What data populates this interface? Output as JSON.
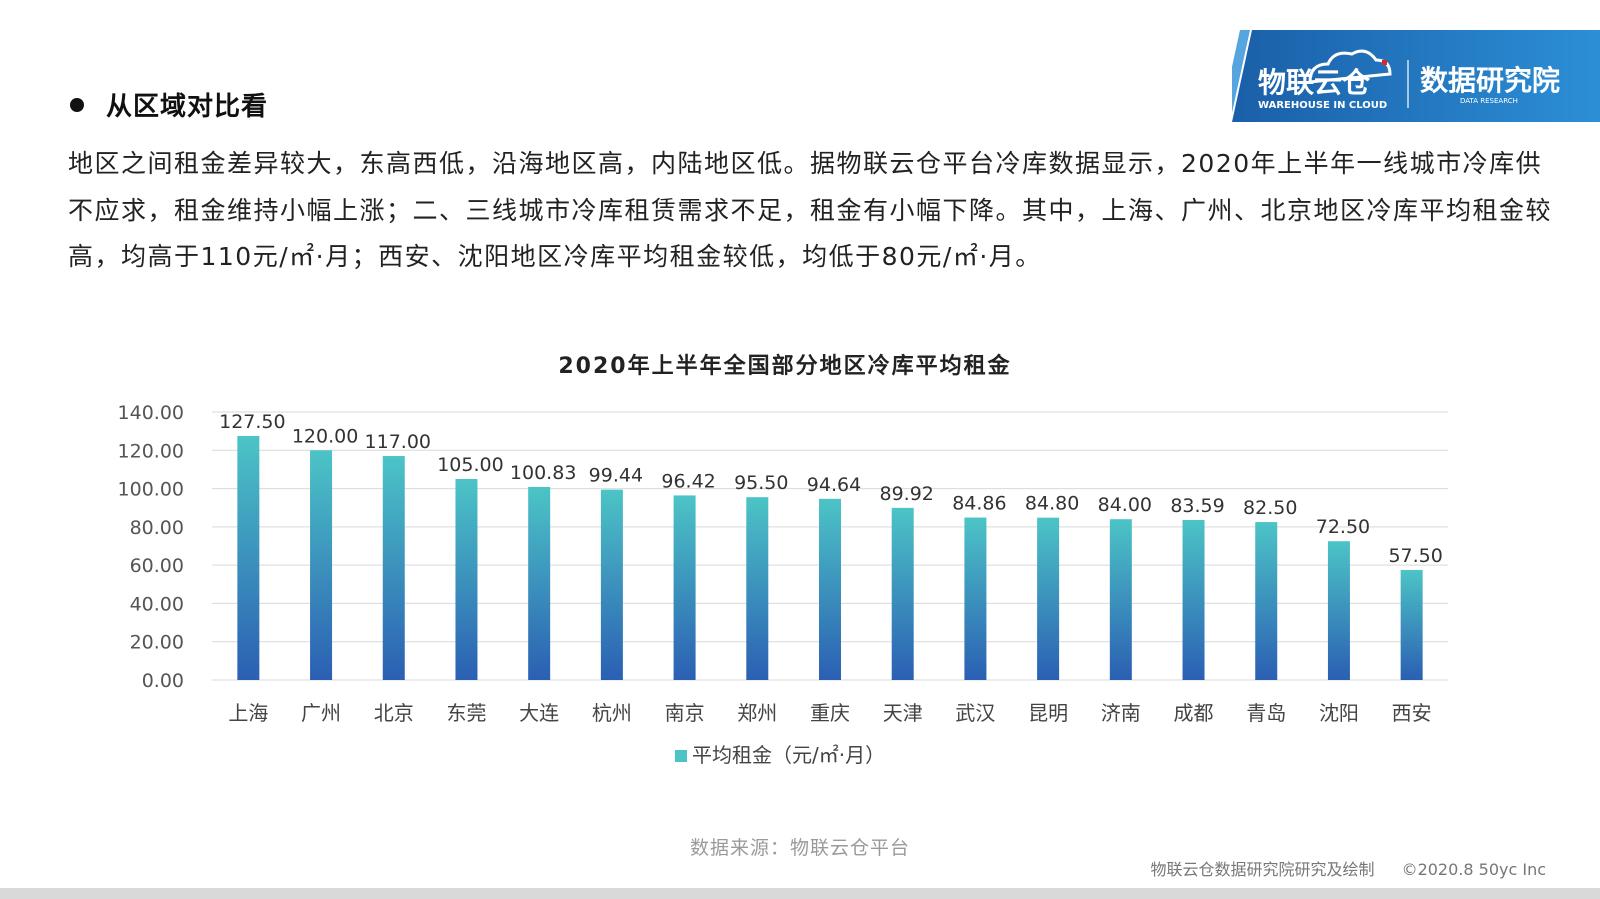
{
  "logo": {
    "brand_cn": "物联云仓",
    "brand_en": "WAREHOUSE IN CLOUD",
    "institute_cn": "数据研究院",
    "institute_en": "DATA RESEARCH",
    "color_dark": "#1a5fa8",
    "color_light": "#2c8fd6",
    "accent": "#e0242b"
  },
  "section": {
    "title": "从区域对比看"
  },
  "paragraph": "地区之间租金差异较大，东高西低，沿海地区高，内陆地区低。据物联云仓平台冷库数据显示，2020年上半年一线城市冷库供不应求，租金维持小幅上涨；二、三线城市冷库租赁需求不足，租金有小幅下降。其中，上海、广州、北京地区冷库平均租金较高，均高于110元/㎡·月；西安、沈阳地区冷库平均租金较低，均低于80元/㎡·月。",
  "chart_data": {
    "type": "bar",
    "title": "2020年上半年全国部分地区冷库平均租金",
    "categories": [
      "上海",
      "广州",
      "北京",
      "东莞",
      "大连",
      "杭州",
      "南京",
      "郑州",
      "重庆",
      "天津",
      "武汉",
      "昆明",
      "济南",
      "成都",
      "青岛",
      "沈阳",
      "西安"
    ],
    "series": [
      {
        "name": "平均租金（元/㎡·月）",
        "values": [
          127.5,
          120.0,
          117.0,
          105.0,
          100.83,
          99.44,
          96.42,
          95.5,
          94.64,
          89.92,
          84.86,
          84.8,
          84.0,
          83.59,
          82.5,
          72.5,
          57.5
        ],
        "labels": [
          "127.50",
          "120.00",
          "117.00",
          "105.00",
          "100.83",
          "99.44",
          "96.42",
          "95.50",
          "94.64",
          "89.92",
          "84.86",
          "84.80",
          "84.00",
          "83.59",
          "82.50",
          "72.50",
          "57.50"
        ]
      }
    ],
    "yticks": [
      "0.00",
      "20.00",
      "40.00",
      "60.00",
      "80.00",
      "100.00",
      "120.00",
      "140.00"
    ],
    "ylim": [
      0,
      140
    ],
    "grid": true,
    "legend_position": "bottom",
    "bar_color_top": "#4cc4c6",
    "bar_color_bottom": "#2b5fb3"
  },
  "footer": {
    "source": "数据来源：物联云仓平台",
    "credit": "物联云仓数据研究院研究及绘制",
    "copyright": "©2020.8 50yc Inc"
  }
}
